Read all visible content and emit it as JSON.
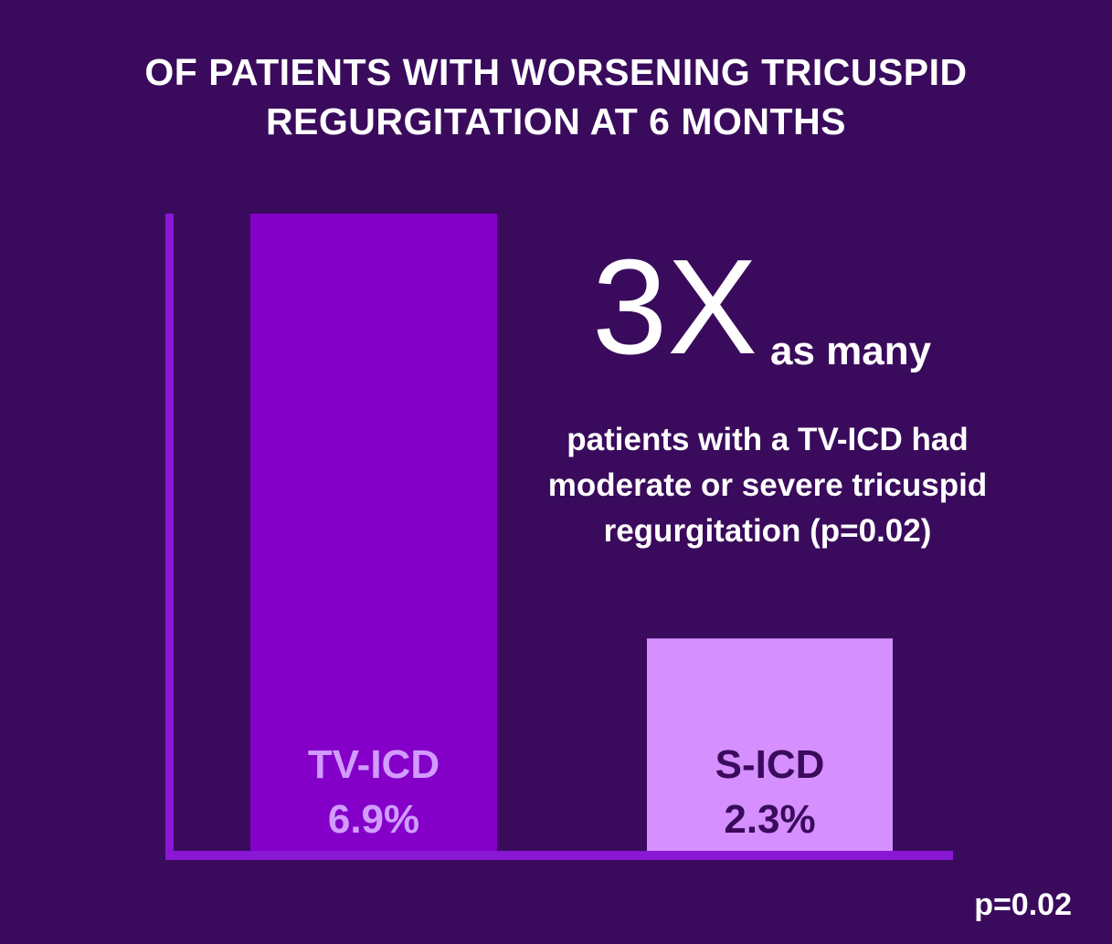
{
  "title": {
    "line1": "OF PATIENTS WITH WORSENING TRICUSPID",
    "line2": "REGURGITATION AT 6 MONTHS"
  },
  "callout": {
    "big": "3X",
    "suffix": "as many",
    "line1": "patients with a TV-ICD had",
    "line2": "moderate or severe tricuspid",
    "line3": "regurgitation (p=0.02)"
  },
  "footnote": "p=0.02",
  "colors": {
    "background": "#3a0b5c",
    "axis": "#8a17d4",
    "tv_icd_bar": "#8400c8",
    "tv_icd_label": "#d29cff",
    "s_icd_bar": "#d68fff",
    "s_icd_label": "#3a0b5c"
  },
  "chart_data": {
    "type": "bar",
    "categories": [
      "TV-ICD",
      "S-ICD"
    ],
    "values": [
      6.9,
      2.3
    ],
    "value_labels": [
      "6.9%",
      "2.3%"
    ],
    "ylim": [
      0,
      6.9
    ],
    "grid": false
  }
}
